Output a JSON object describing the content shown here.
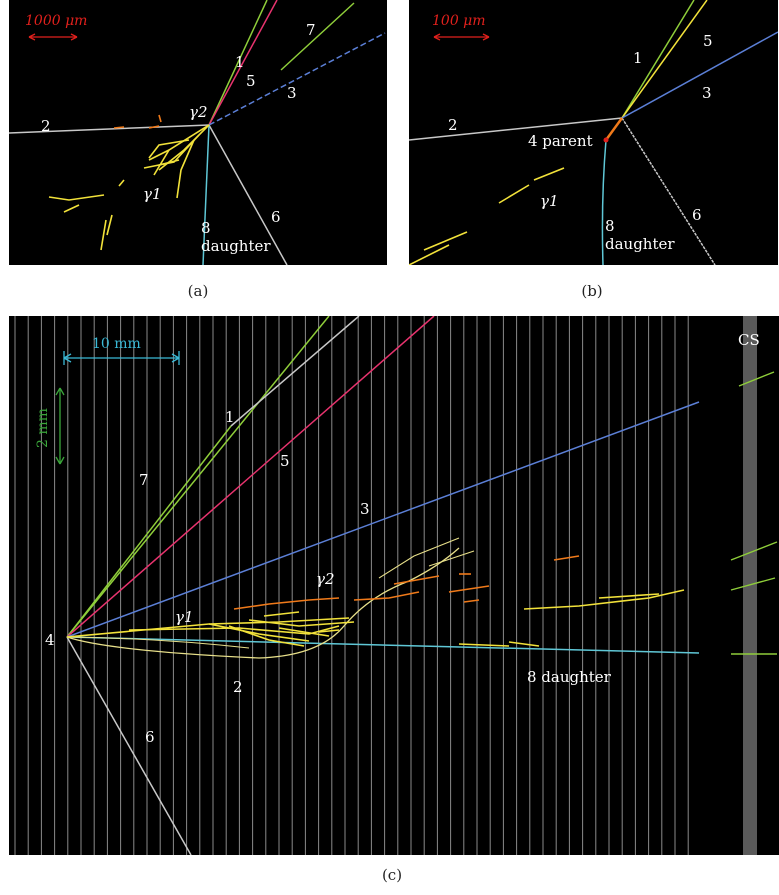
{
  "captions": {
    "a": "(a)",
    "b": "(b)",
    "c": "(c)"
  },
  "panel_a": {
    "scale_bar": "1000 μm",
    "labels": {
      "t1": "1",
      "t2": "2",
      "t3": "3",
      "t5": "5",
      "t6": "6",
      "t7": "7",
      "g1": "γ1",
      "g2": "γ2",
      "t8": "8",
      "daughter": "daughter"
    }
  },
  "panel_b": {
    "scale_bar": "100 μm",
    "labels": {
      "t1": "1",
      "t2": "2",
      "t3": "3",
      "t5": "5",
      "t6": "6",
      "parent": "4 parent",
      "g1": "γ1",
      "t8": "8",
      "daughter": "daughter"
    }
  },
  "panel_c": {
    "scale_x": "10 mm",
    "scale_y": "2 mm",
    "cs_label": "CS",
    "labels": {
      "t1": "1",
      "t2": "2",
      "t3": "3",
      "t4": "4",
      "t5": "5",
      "t6": "6",
      "t7": "7",
      "g1": "γ1",
      "g2": "γ2",
      "daughter": "8 daughter"
    }
  },
  "colors": {
    "background": "#000000",
    "scale_a_b": "#e0201c",
    "scale_c_x": "#3ab9d6",
    "scale_c_y": "#3aa63a",
    "track_green": "#8fce3a",
    "track_pink": "#e8336e",
    "track_blue": "#5b7fd6",
    "track_grey": "#c8c8c8",
    "gamma_yellow": "#f2e23a",
    "gamma_orange": "#f07a1a",
    "daughter_cyan": "#5fc7d6",
    "cs_bar": "#5a5a5a"
  }
}
